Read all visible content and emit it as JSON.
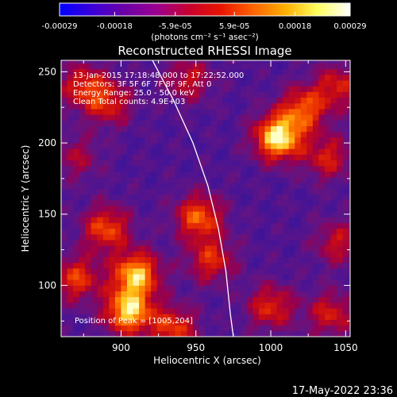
{
  "chart_data": {
    "type": "heatmap",
    "title": "Reconstructed RHESSI Image",
    "xlabel": "Heliocentric X (arcsec)",
    "ylabel": "Heliocentric Y (arcsec)",
    "xlim": [
      860,
      1053
    ],
    "ylim": [
      64,
      258
    ],
    "x_ticks": [
      900,
      950,
      1000,
      1050
    ],
    "y_ticks": [
      100,
      150,
      200,
      250
    ],
    "colorbar": {
      "unit_label": "(photons cm⁻² s⁻¹ asec⁻²)",
      "range": [
        -0.00029,
        0.00029
      ],
      "ticks": [
        -0.00029,
        -0.00018,
        -5.9e-05,
        5.9e-05,
        0.00018,
        0.00029
      ],
      "tick_labels": [
        "-0.00029",
        "-0.00018",
        "-5.9e-05",
        "5.9e-05",
        "0.00018",
        "0.00029"
      ],
      "stops": [
        "#0000ff",
        "#3a00d8",
        "#6a00a8",
        "#9a0090",
        "#c80030",
        "#e81400",
        "#ff6400",
        "#ffb000",
        "#ffff60",
        "#ffffff"
      ]
    },
    "annotations": [
      "13-Jan-2015 17:18:48.000 to 17:22:52.000",
      "Detectors: 3F 5F 6F 7F 8F 9F, Att 0",
      "Energy Range: 25.0 - 50.0 keV",
      "Clean     Total counts: 4.9E+03"
    ],
    "peak_label": "Position of Peak = [1005,204]",
    "peak": [
      1005,
      204
    ],
    "sources": [
      {
        "x": 1005,
        "y": 204,
        "amp": 1.0
      },
      {
        "x": 1022,
        "y": 224,
        "amp": 0.6
      },
      {
        "x": 1038,
        "y": 190,
        "amp": 0.45
      },
      {
        "x": 1045,
        "y": 240,
        "amp": 0.45
      },
      {
        "x": 910,
        "y": 108,
        "amp": 0.85
      },
      {
        "x": 905,
        "y": 82,
        "amp": 0.9
      },
      {
        "x": 890,
        "y": 140,
        "amp": 0.6
      },
      {
        "x": 870,
        "y": 105,
        "amp": 0.55
      },
      {
        "x": 952,
        "y": 148,
        "amp": 0.65
      },
      {
        "x": 960,
        "y": 118,
        "amp": 0.5
      },
      {
        "x": 875,
        "y": 240,
        "amp": 0.5
      },
      {
        "x": 892,
        "y": 228,
        "amp": 0.45
      },
      {
        "x": 945,
        "y": 245,
        "amp": 0.4
      },
      {
        "x": 935,
        "y": 70,
        "amp": 0.55
      },
      {
        "x": 1000,
        "y": 85,
        "amp": 0.5
      },
      {
        "x": 1040,
        "y": 80,
        "amp": 0.45
      },
      {
        "x": 1045,
        "y": 130,
        "amp": 0.4
      },
      {
        "x": 870,
        "y": 190,
        "amp": 0.3
      }
    ],
    "limb": [
      [
        921,
        258
      ],
      [
        935,
        230
      ],
      [
        948,
        200
      ],
      [
        958,
        170
      ],
      [
        965,
        140
      ],
      [
        970,
        110
      ],
      [
        973,
        80
      ],
      [
        975,
        64
      ]
    ]
  },
  "footer": {
    "timestamp": "17-May-2022 23:36"
  }
}
